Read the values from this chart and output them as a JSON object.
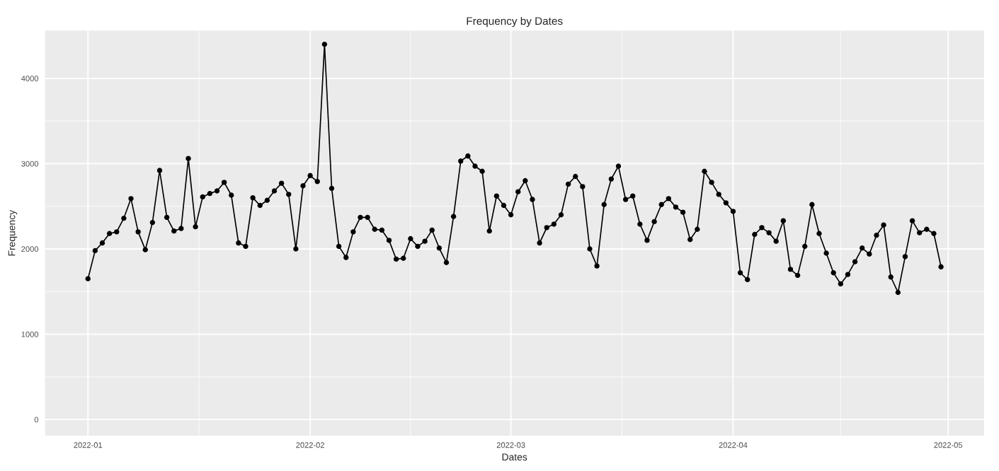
{
  "chart_data": {
    "type": "line",
    "title": "Frequency by Dates",
    "xlabel": "Dates",
    "ylabel": "Frequency",
    "x": [
      "2022-01-01",
      "2022-01-02",
      "2022-01-03",
      "2022-01-04",
      "2022-01-05",
      "2022-01-06",
      "2022-01-07",
      "2022-01-08",
      "2022-01-09",
      "2022-01-10",
      "2022-01-11",
      "2022-01-12",
      "2022-01-13",
      "2022-01-14",
      "2022-01-15",
      "2022-01-16",
      "2022-01-17",
      "2022-01-18",
      "2022-01-19",
      "2022-01-20",
      "2022-01-21",
      "2022-01-22",
      "2022-01-23",
      "2022-01-24",
      "2022-01-25",
      "2022-01-26",
      "2022-01-27",
      "2022-01-28",
      "2022-01-29",
      "2022-01-30",
      "2022-01-31",
      "2022-02-01",
      "2022-02-02",
      "2022-02-03",
      "2022-02-04",
      "2022-02-05",
      "2022-02-06",
      "2022-02-07",
      "2022-02-08",
      "2022-02-09",
      "2022-02-10",
      "2022-02-11",
      "2022-02-12",
      "2022-02-13",
      "2022-02-14",
      "2022-02-15",
      "2022-02-16",
      "2022-02-17",
      "2022-02-18",
      "2022-02-19",
      "2022-02-20",
      "2022-02-21",
      "2022-02-22",
      "2022-02-23",
      "2022-02-24",
      "2022-02-25",
      "2022-02-26",
      "2022-02-27",
      "2022-02-28",
      "2022-03-01",
      "2022-03-02",
      "2022-03-03",
      "2022-03-04",
      "2022-03-05",
      "2022-03-06",
      "2022-03-07",
      "2022-03-08",
      "2022-03-09",
      "2022-03-10",
      "2022-03-11",
      "2022-03-12",
      "2022-03-13",
      "2022-03-14",
      "2022-03-15",
      "2022-03-16",
      "2022-03-17",
      "2022-03-18",
      "2022-03-19",
      "2022-03-20",
      "2022-03-21",
      "2022-03-22",
      "2022-03-23",
      "2022-03-24",
      "2022-03-25",
      "2022-03-26",
      "2022-03-27",
      "2022-03-28",
      "2022-03-29",
      "2022-03-30",
      "2022-03-31",
      "2022-04-01",
      "2022-04-02",
      "2022-04-03",
      "2022-04-04",
      "2022-04-05",
      "2022-04-06",
      "2022-04-07",
      "2022-04-08",
      "2022-04-09",
      "2022-04-10",
      "2022-04-11",
      "2022-04-12",
      "2022-04-13",
      "2022-04-14",
      "2022-04-15",
      "2022-04-16",
      "2022-04-17",
      "2022-04-18",
      "2022-04-19",
      "2022-04-20",
      "2022-04-21",
      "2022-04-22",
      "2022-04-23",
      "2022-04-24",
      "2022-04-25",
      "2022-04-26",
      "2022-04-27",
      "2022-04-28",
      "2022-04-29",
      "2022-04-30"
    ],
    "series": [
      {
        "color": "#000000",
        "values": [
          1650,
          1980,
          2070,
          2180,
          2200,
          2360,
          2590,
          2200,
          1990,
          2310,
          2920,
          2370,
          2210,
          2240,
          3060,
          2260,
          2610,
          2650,
          2680,
          2780,
          2630,
          2070,
          2030,
          2600,
          2510,
          2570,
          2680,
          2770,
          2640,
          2000,
          2740,
          2860,
          2790,
          4400,
          2710,
          2030,
          1900,
          2200,
          2370,
          2370,
          2230,
          2220,
          2100,
          1880,
          1890,
          2120,
          2030,
          2090,
          2220,
          2010,
          1840,
          2380,
          3030,
          3090,
          2970,
          2910,
          2210,
          2620,
          2510,
          2400,
          2670,
          2800,
          2580,
          2070,
          2250,
          2290,
          2400,
          2760,
          2850,
          2730,
          2000,
          1800,
          2520,
          2820,
          2970,
          2580,
          2620,
          2290,
          2100,
          2320,
          2520,
          2590,
          2490,
          2430,
          2110,
          2230,
          2910,
          2780,
          2640,
          2540,
          2440,
          1720,
          1640,
          2170,
          2250,
          2190,
          2090,
          2330,
          1760,
          1690,
          2030,
          2520,
          2180,
          1950,
          1720,
          1590,
          1700,
          1850,
          2010,
          1940,
          2160,
          2280,
          1670,
          1490,
          1910,
          2330,
          2190,
          2230,
          2180,
          1790
        ]
      }
    ],
    "xlim": [
      "2021-12-26",
      "2022-05-06"
    ],
    "xticks": [
      {
        "value": "2022-01-01",
        "label": "2022-01"
      },
      {
        "value": "2022-02-01",
        "label": "2022-02"
      },
      {
        "value": "2022-03-01",
        "label": "2022-03"
      },
      {
        "value": "2022-04-01",
        "label": "2022-04"
      },
      {
        "value": "2022-05-01",
        "label": "2022-05"
      }
    ],
    "ylim": [
      -190,
      4560
    ],
    "yticks": [
      0,
      1000,
      2000,
      3000,
      4000
    ],
    "grid": true,
    "legend": false,
    "marker": "circle",
    "line_style": "solid"
  }
}
